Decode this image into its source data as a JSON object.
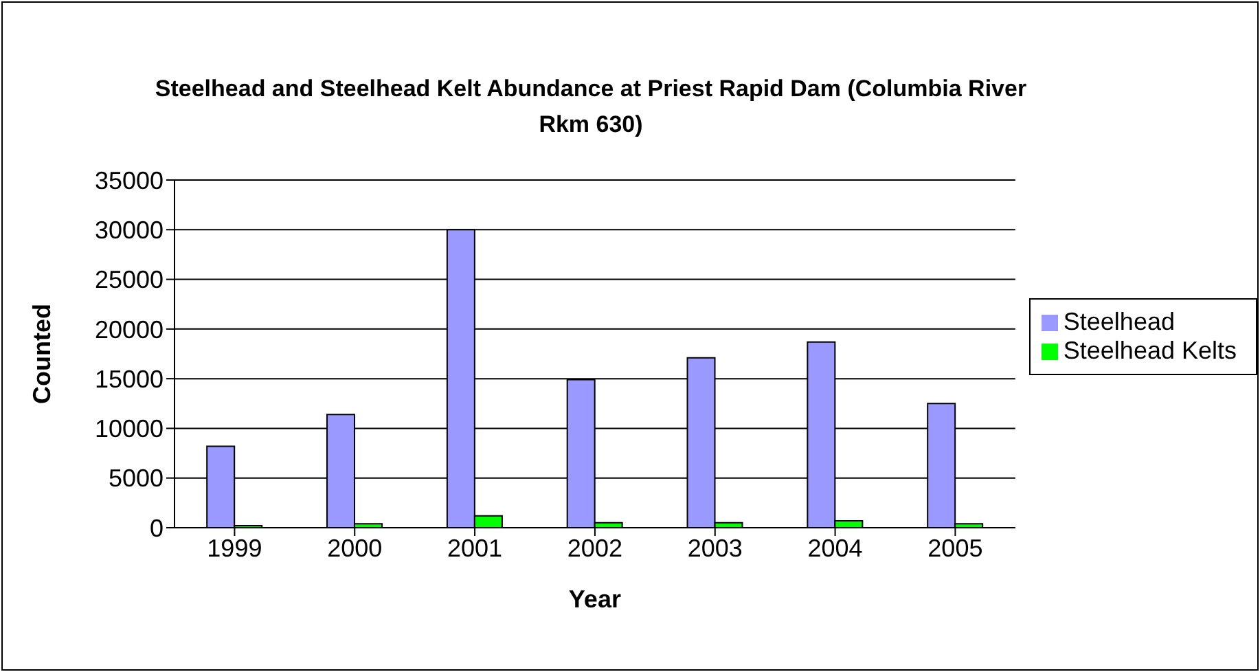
{
  "chart_data": {
    "type": "bar",
    "title": "Steelhead and Steelhead Kelt Abundance at Priest Rapid Dam (Columbia River Rkm 630)",
    "xlabel": "Year",
    "ylabel": "Counted",
    "categories": [
      "1999",
      "2000",
      "2001",
      "2002",
      "2003",
      "2004",
      "2005"
    ],
    "series": [
      {
        "name": "Steelhead",
        "color": "#9999ff",
        "values": [
          8200,
          11400,
          30000,
          14900,
          17100,
          18700,
          12500
        ]
      },
      {
        "name": "Steelhead Kelts",
        "color": "#00ff00",
        "values": [
          200,
          400,
          1200,
          500,
          500,
          700,
          400
        ]
      }
    ],
    "ylim": [
      0,
      35000
    ],
    "yticks": [
      0,
      5000,
      10000,
      15000,
      20000,
      25000,
      30000,
      35000
    ],
    "grid": "y",
    "legend": "right"
  }
}
